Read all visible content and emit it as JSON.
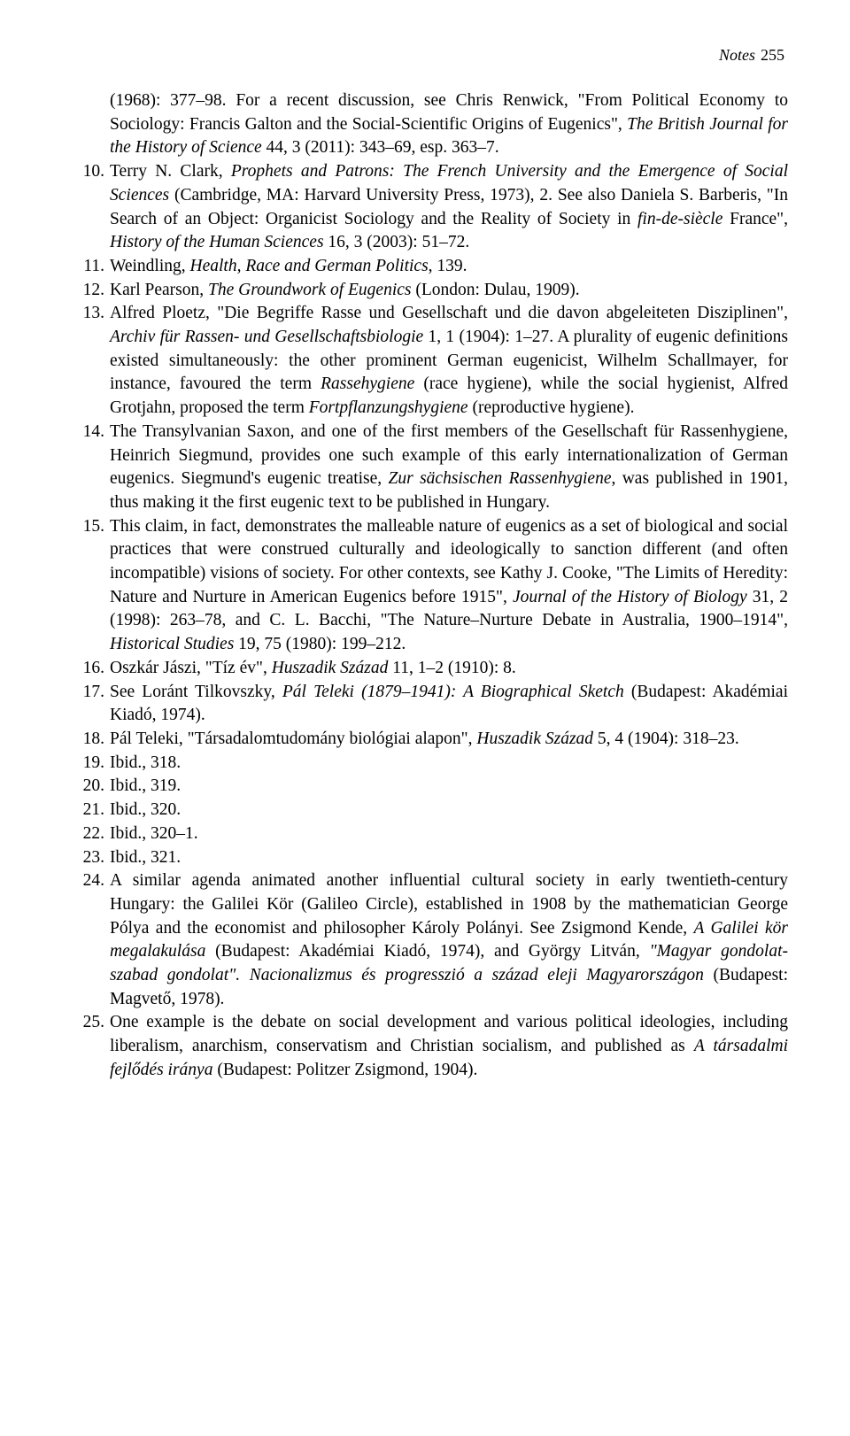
{
  "header": {
    "label": "Notes",
    "page": "255"
  },
  "typography": {
    "body_fontsize_pt": 14.6,
    "header_fontsize_pt": 13.5,
    "line_height": 1.37,
    "font_family": "Georgia / serif",
    "text_color": "#000000",
    "background_color": "#ffffff"
  },
  "notes": {
    "cont9": {
      "parts": [
        {
          "t": "(1968): 377–98. For a recent discussion, see Chris Renwick, \"From Political Economy to Sociology: Francis Galton and the Social-Scientific Origins of Eugenics\", "
        },
        {
          "t": "The British Journal for the History of Science",
          "i": true
        },
        {
          "t": " 44, 3 (2011): 343–69, esp. 363–7."
        }
      ]
    },
    "n10": {
      "num": "10.",
      "parts": [
        {
          "t": "Terry N. Clark, "
        },
        {
          "t": "Prophets and Patrons: The French University and the Emergence of Social Sciences",
          "i": true
        },
        {
          "t": " (Cambridge, MA: Harvard University Press, 1973), 2. See also Daniela S. Barberis, \"In Search of an Object: Organicist Sociology and the Reality of Society in "
        },
        {
          "t": "fin-de-siècle",
          "i": true
        },
        {
          "t": " France\", "
        },
        {
          "t": "History of the Human Sciences",
          "i": true
        },
        {
          "t": " 16, 3 (2003): 51–72."
        }
      ]
    },
    "n11": {
      "num": "11.",
      "parts": [
        {
          "t": "Weindling, "
        },
        {
          "t": "Health, Race and German Politics",
          "i": true
        },
        {
          "t": ", 139."
        }
      ]
    },
    "n12": {
      "num": "12.",
      "parts": [
        {
          "t": "Karl Pearson, "
        },
        {
          "t": "The Groundwork of Eugenics",
          "i": true
        },
        {
          "t": " (London: Dulau, 1909)."
        }
      ]
    },
    "n13": {
      "num": "13.",
      "parts": [
        {
          "t": "Alfred Ploetz, \"Die Begriffe Rasse und Gesellschaft und die davon abgeleiteten Disziplinen\", "
        },
        {
          "t": "Archiv für Rassen- und Gesellschaftsbiologie",
          "i": true
        },
        {
          "t": " 1, 1 (1904): 1–27. A plurality of eugenic definitions existed simultaneously: the other prominent German eugenicist, Wilhelm Schallmayer, for instance, favoured the term "
        },
        {
          "t": "Rassehygiene",
          "i": true
        },
        {
          "t": " (race hygiene), while the social hygienist, Alfred Grotjahn, proposed the term "
        },
        {
          "t": "Fortpflanzungshygiene",
          "i": true
        },
        {
          "t": " (reproductive hygiene)."
        }
      ]
    },
    "n14": {
      "num": "14.",
      "parts": [
        {
          "t": "The Transylvanian Saxon, and one of the first members of the Gesellschaft für Rassenhygiene, Heinrich Siegmund, provides one such example of this early internationalization of German eugenics. Siegmund's eugenic treatise, "
        },
        {
          "t": "Zur sächsischen Rassenhygiene",
          "i": true
        },
        {
          "t": ", was published in 1901, thus making it the first eugenic text to be published in Hungary."
        }
      ]
    },
    "n15": {
      "num": "15.",
      "parts": [
        {
          "t": "This claim, in fact, demonstrates the malleable nature of eugenics as a set of biological and social practices that were construed culturally and ideologically to sanction different (and often incompatible) visions of society. For other contexts, see Kathy J. Cooke, \"The Limits of Heredity: Nature and Nurture in American Eugenics before 1915\", "
        },
        {
          "t": "Journal of the History of Biology",
          "i": true
        },
        {
          "t": " 31, 2 (1998): 263–78, and C. L. Bacchi, \"The Nature–Nurture Debate in Australia, 1900–1914\", "
        },
        {
          "t": "Historical Studies",
          "i": true
        },
        {
          "t": " 19, 75 (1980): 199–212."
        }
      ]
    },
    "n16": {
      "num": "16.",
      "parts": [
        {
          "t": "Oszkár Jászi, \"Tíz év\", "
        },
        {
          "t": "Huszadik Század",
          "i": true
        },
        {
          "t": " 11, 1–2 (1910): 8."
        }
      ]
    },
    "n17": {
      "num": "17.",
      "parts": [
        {
          "t": "See Loránt Tilkovszky, "
        },
        {
          "t": "Pál Teleki (1879–1941): A Biographical Sketch",
          "i": true
        },
        {
          "t": " (Budapest: Akadémiai Kiadó, 1974)."
        }
      ]
    },
    "n18": {
      "num": "18.",
      "parts": [
        {
          "t": "Pál Teleki, \"Társadalomtudomány biológiai alapon\", "
        },
        {
          "t": "Huszadik Század",
          "i": true
        },
        {
          "t": " 5, 4 (1904): 318–23."
        }
      ]
    },
    "n19": {
      "num": "19.",
      "parts": [
        {
          "t": "Ibid., 318."
        }
      ]
    },
    "n20": {
      "num": "20.",
      "parts": [
        {
          "t": "Ibid., 319."
        }
      ]
    },
    "n21": {
      "num": "21.",
      "parts": [
        {
          "t": "Ibid., 320."
        }
      ]
    },
    "n22": {
      "num": "22.",
      "parts": [
        {
          "t": "Ibid., 320–1."
        }
      ]
    },
    "n23": {
      "num": "23.",
      "parts": [
        {
          "t": "Ibid., 321."
        }
      ]
    },
    "n24": {
      "num": "24.",
      "parts": [
        {
          "t": "A similar agenda animated another influential cultural society in early twentieth-century Hungary: the Galilei Kör (Galileo Circle), established in 1908 by the mathematician George Pólya and the economist and philosopher Károly Polányi. See Zsigmond Kende, "
        },
        {
          "t": "A Galilei kör megalakulása",
          "i": true
        },
        {
          "t": " (Budapest: Akadémiai Kiadó, 1974), and György Litván, "
        },
        {
          "t": "\"Magyar gondolat-szabad gondolat\". Nacionalizmus és progresszió a század eleji Magyarországon",
          "i": true
        },
        {
          "t": " (Budapest: Magvető, 1978)."
        }
      ]
    },
    "n25": {
      "num": "25.",
      "parts": [
        {
          "t": "One example is the debate on social development and various political ideologies, including liberalism, anarchism, conservatism and Christian socialism, and published as "
        },
        {
          "t": "A társadalmi fejlődés iránya",
          "i": true
        },
        {
          "t": " (Budapest: Politzer Zsigmond, 1904)."
        }
      ]
    }
  }
}
